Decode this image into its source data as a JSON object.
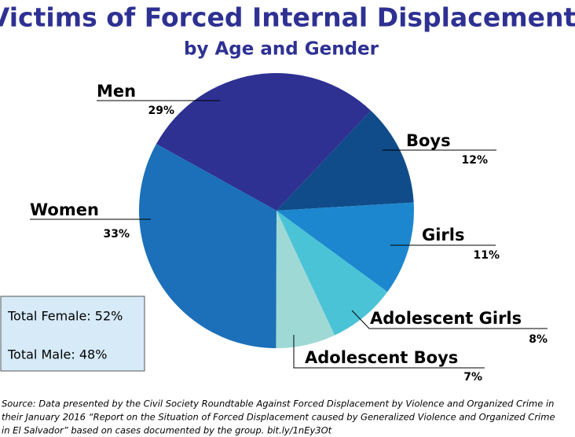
{
  "chart_data": {
    "type": "pie",
    "title": "Victims of Forced Internal Displacement",
    "subtitle": "by Age and Gender",
    "categories": [
      "Men",
      "Boys",
      "Girls",
      "Adolescent Girls",
      "Adolescent Boys",
      "Women"
    ],
    "values": [
      29,
      12,
      11,
      8,
      7,
      33
    ],
    "value_labels": [
      "29%",
      "12%",
      "11%",
      "8%",
      "7%",
      "33%"
    ],
    "colors": [
      "#2e3192",
      "#0f4c89",
      "#1c87ce",
      "#4bc3d7",
      "#9fd9d6",
      "#1b70b9"
    ],
    "annotations": [
      "Total Female: 52%",
      "Total Male: 48%"
    ],
    "source": [
      "Source: Data presented by the Civil Society Roundtable Against Forced Displacement by Violence and Organized Crime in",
      "their January 2016 “Report on the Situation of Forced Displacement caused by Generalized Violence and Organized Crime",
      "in El Salvador” based on cases documented by the group. bit.ly/1nEy3Ot"
    ]
  }
}
